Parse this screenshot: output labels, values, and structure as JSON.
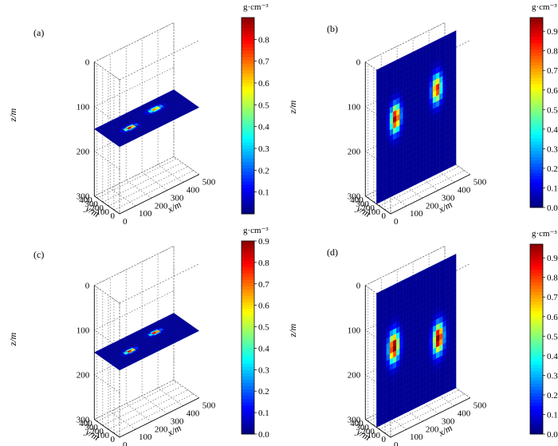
{
  "chart_data": [
    {
      "type": "heatmap",
      "panel_label": "(a)",
      "plane": "horizontal",
      "colorbar": {
        "unit": "g·cm⁻³",
        "ticks": [
          "0.1",
          "0.2",
          "0.3",
          "0.4",
          "0.5",
          "0.6",
          "0.7",
          "0.8"
        ],
        "range": [
          0.0,
          0.9
        ]
      },
      "axes": {
        "x": {
          "label": "x/m",
          "ticks": [
            "0",
            "100",
            "200",
            "300",
            "400",
            "500"
          ],
          "range": [
            0,
            500
          ]
        },
        "y": {
          "label": "y/m",
          "ticks": [
            "0",
            "100",
            "200",
            "300",
            "400"
          ],
          "range": [
            0,
            450
          ]
        },
        "z": {
          "label": "z/m",
          "ticks": [
            "0",
            "100",
            "200",
            "300"
          ],
          "range": [
            0,
            300
          ],
          "reversed": true
        }
      },
      "slice_z": 150,
      "anomalies": [
        {
          "x": 140,
          "y": 210,
          "peak": 0.9,
          "radius": 28
        },
        {
          "x": 330,
          "y": 300,
          "peak": 0.7,
          "radius": 32
        }
      ]
    },
    {
      "type": "heatmap",
      "panel_label": "(b)",
      "plane": "vertical",
      "colorbar": {
        "unit": "g·cm⁻³",
        "ticks": [
          "0.0",
          "0.1",
          "0.2",
          "0.3",
          "0.4",
          "0.5",
          "0.6",
          "0.7",
          "0.8",
          "0.9"
        ],
        "range": [
          0.0,
          0.97
        ]
      },
      "axes": {
        "x": {
          "label": "x/m",
          "ticks": [
            "0",
            "100",
            "200",
            "300",
            "400",
            "500"
          ],
          "range": [
            0,
            500
          ]
        },
        "y": {
          "label": "y/m",
          "ticks": [
            "0",
            "100",
            "200",
            "300",
            "400"
          ],
          "range": [
            0,
            450
          ]
        },
        "z": {
          "label": "z/m",
          "ticks": [
            "0",
            "100",
            "200",
            "300"
          ],
          "range": [
            0,
            300
          ],
          "reversed": true
        }
      },
      "slice_y": 250,
      "anomalies": [
        {
          "x": 120,
          "z": 130,
          "peak": 0.95,
          "radius": 28
        },
        {
          "x": 380,
          "z": 110,
          "peak": 0.85,
          "radius": 28
        }
      ]
    },
    {
      "type": "heatmap",
      "panel_label": "(c)",
      "plane": "horizontal",
      "colorbar": {
        "unit": "g·cm⁻³",
        "ticks": [
          "0.0",
          "0.1",
          "0.2",
          "0.3",
          "0.4",
          "0.5",
          "0.6",
          "0.7",
          "0.8",
          "0.9"
        ],
        "range": [
          0.0,
          0.9
        ]
      },
      "axes": {
        "x": {
          "label": "x/m",
          "ticks": [
            "0",
            "100",
            "200",
            "300",
            "400",
            "500"
          ],
          "range": [
            0,
            500
          ]
        },
        "y": {
          "label": "y/m",
          "ticks": [
            "0",
            "100",
            "200",
            "300",
            "400"
          ],
          "range": [
            0,
            450
          ]
        },
        "z": {
          "label": "z/m",
          "ticks": [
            "0",
            "100",
            "200",
            "300"
          ],
          "range": [
            0,
            300
          ],
          "reversed": true
        }
      },
      "slice_z": 150,
      "anomalies": [
        {
          "x": 140,
          "y": 210,
          "peak": 0.9,
          "radius": 26
        },
        {
          "x": 330,
          "y": 300,
          "peak": 0.9,
          "radius": 26
        }
      ]
    },
    {
      "type": "heatmap",
      "panel_label": "(d)",
      "plane": "vertical",
      "colorbar": {
        "unit": "g·cm⁻³",
        "ticks": [
          "0.0",
          "0.1",
          "0.2",
          "0.3",
          "0.4",
          "0.5",
          "0.6",
          "0.7",
          "0.8",
          "0.9"
        ],
        "range": [
          0.0,
          0.97
        ]
      },
      "axes": {
        "x": {
          "label": "x/m",
          "ticks": [
            "0",
            "100",
            "200",
            "300",
            "400",
            "500"
          ],
          "range": [
            0,
            500
          ]
        },
        "y": {
          "label": "y/m",
          "ticks": [
            "0",
            "100",
            "200",
            "300",
            "400"
          ],
          "range": [
            0,
            450
          ]
        },
        "z": {
          "label": "z/m",
          "ticks": [
            "0",
            "100",
            "200",
            "300"
          ],
          "range": [
            0,
            300
          ],
          "reversed": true
        }
      },
      "slice_y": 250,
      "anomalies": [
        {
          "x": 110,
          "z": 140,
          "peak": 1.0,
          "radius": 30
        },
        {
          "x": 390,
          "z": 170,
          "peak": 1.0,
          "radius": 30
        }
      ]
    }
  ]
}
